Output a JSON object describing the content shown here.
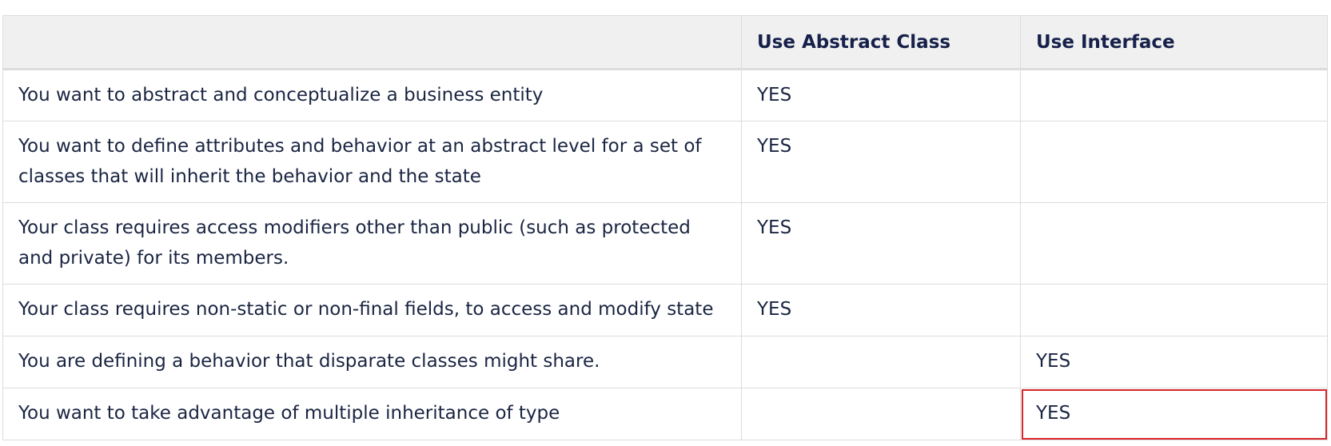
{
  "table": {
    "headers": [
      "",
      "Use Abstract Class",
      "Use Interface"
    ],
    "rows": [
      {
        "scenario": "You want to abstract and conceptualize a business entity",
        "abstract_class": "YES",
        "interface": ""
      },
      {
        "scenario": "You want to define attributes and behavior at an abstract level for a set of classes that will inherit the behavior and the state",
        "abstract_class": "YES",
        "interface": ""
      },
      {
        "scenario": "Your class requires access modifiers other than public (such as protected and private) for its members.",
        "abstract_class": "YES",
        "interface": ""
      },
      {
        "scenario": "Your class requires non-static or non-final fields, to access and modify state",
        "abstract_class": "YES",
        "interface": ""
      },
      {
        "scenario": "You are defining a behavior that disparate classes might share.",
        "abstract_class": "",
        "interface": "YES"
      },
      {
        "scenario": "You want to take advantage of multiple inheritance of type",
        "abstract_class": "",
        "interface": "YES"
      }
    ],
    "highlight_color": "#d8262b"
  }
}
